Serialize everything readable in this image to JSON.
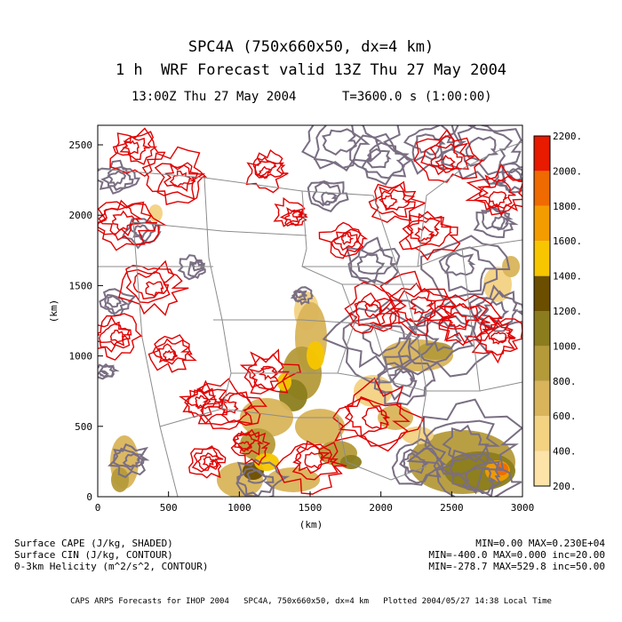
{
  "titles": {
    "line1": "SPC4A (750x660x50, dx=4 km)",
    "line2": "1 h  WRF Forecast valid 13Z Thu 27 May 2004",
    "time_left": "13:00Z Thu 27 May 2004",
    "time_right": "T=3600.0 s (1:00:00)"
  },
  "axes": {
    "xlabel": "(km)",
    "ylabel": "(km)",
    "xticks": [
      "0",
      "500",
      "1000",
      "1500",
      "2000",
      "2500",
      "3000"
    ],
    "yticks": [
      "0",
      "500",
      "1000",
      "1500",
      "2000",
      "2500"
    ]
  },
  "colorbar": {
    "labels": [
      "200.",
      "400.",
      "600.",
      "800.",
      "1000.",
      "1200.",
      "1400.",
      "1600.",
      "1800.",
      "2000.",
      "2200."
    ],
    "colors": [
      "#fde3a7",
      "#f3d282",
      "#d9b45a",
      "#b59a3a",
      "#8b7d1e",
      "#6b4e00",
      "#f7c600",
      "#f39c00",
      "#ef6a00",
      "#e81a00",
      "#fde3a7"
    ]
  },
  "legend": {
    "field1": "Surface CAPE (J/kg, SHADED)",
    "field2": "Surface CIN (J/kg, CONTOUR)",
    "field3": "0-3km Helicity (m^2/s^2, CONTOUR)",
    "stats1": "MIN=0.00 MAX=0.230E+04",
    "stats2": "MIN=-400.0 MAX=0.000 inc=20.00",
    "stats3": "MIN=-278.7 MAX=529.8 inc=50.00"
  },
  "footer": "CAPS ARPS Forecasts for IHOP 2004   SPC4A, 750x660x50, dx=4 km   Plotted 2004/05/27 14:38 Local Time",
  "contour_colors": {
    "cin": "#7a6e82",
    "helicity": "#e00000",
    "boundaries": "#8c8c8c"
  }
}
